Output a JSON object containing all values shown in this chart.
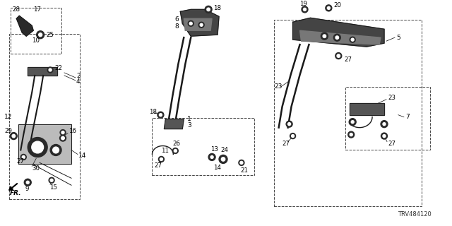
{
  "bg_color": "#ffffff",
  "part_number": "TRV484120",
  "fig_width": 6.4,
  "fig_height": 3.2,
  "dpi": 100,
  "line_color": "#1a1a1a",
  "label_color": "#000000"
}
